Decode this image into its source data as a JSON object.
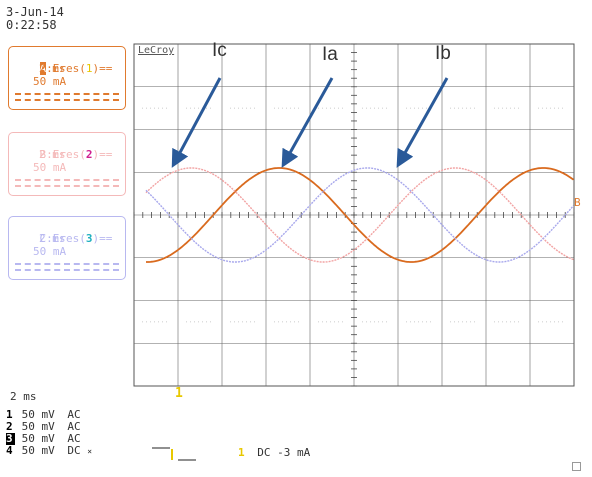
{
  "header": {
    "date": "3-Jun-14",
    "time": "0:22:58"
  },
  "scope_brand": "LeCroy",
  "traces": [
    {
      "id": "A",
      "func": "Eres",
      "source": "1",
      "timebase": "2 ms",
      "vdiv": "50 mA",
      "color": "#e07a2e",
      "src_color": "#e8c800"
    },
    {
      "id": "B",
      "func": "Eres",
      "source": "2",
      "timebase": "2 ms",
      "vdiv": "50 mA",
      "color": "#f4b9b9",
      "src_color": "#d02090"
    },
    {
      "id": "C",
      "func": "Eres",
      "source": "3",
      "timebase": "2 ms",
      "vdiv": "50 mA",
      "color": "#b8b8f0",
      "src_color": "#20b0c0"
    }
  ],
  "annotations": {
    "ic": "Ic",
    "ia": "Ia",
    "ib": "Ib"
  },
  "marker": {
    "trace_marker": "B",
    "trigger": "1"
  },
  "bottom": {
    "timebase": "2 ms",
    "channels": [
      {
        "num": "1",
        "vdiv": "50 mV",
        "coupling": "AC",
        "extra": ""
      },
      {
        "num": "2",
        "vdiv": "50 mV",
        "coupling": "AC",
        "extra": ""
      },
      {
        "num": "3",
        "vdiv": "50 mV",
        "coupling": "AC",
        "extra": ""
      },
      {
        "num": "4",
        "vdiv": "50 mV",
        "coupling": "DC",
        "extra": "×"
      }
    ],
    "trigger_ch": "1",
    "trigger_text": "DC -3 mA",
    "trigger_mark": "1"
  },
  "chart_data": {
    "type": "line",
    "x_unit": "ms",
    "timebase_per_div": "2 ms",
    "y_per_div": "50 mA",
    "xlim": [
      0,
      20
    ],
    "ylim": [
      -4,
      4
    ],
    "series": [
      {
        "name": "Ia",
        "color": "#d96a1e",
        "amplitude_div": 1.1,
        "period_div": 6.0,
        "phase_deg": 0
      },
      {
        "name": "Ib",
        "color": "#f2a3a3",
        "amplitude_div": 1.1,
        "period_div": 6.0,
        "phase_deg": -120
      },
      {
        "name": "Ic",
        "color": "#a8a8ec",
        "amplitude_div": 1.1,
        "period_div": 6.0,
        "phase_deg": 120
      }
    ],
    "grid": true
  }
}
